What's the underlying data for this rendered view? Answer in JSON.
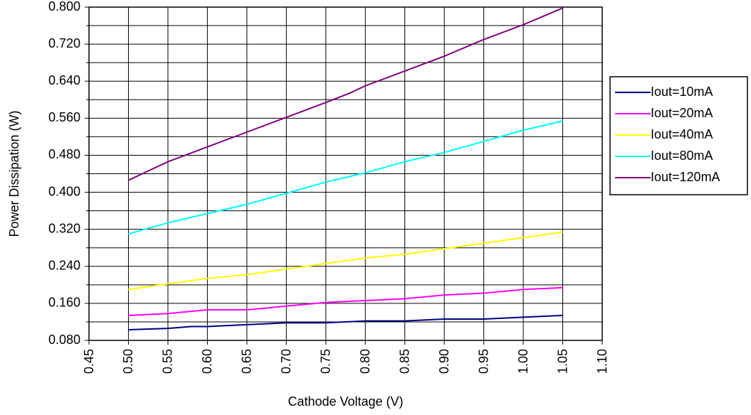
{
  "chart_data": {
    "type": "line",
    "title": "",
    "xlabel": "Cathode Voltage (V)",
    "ylabel": "Power Dissipation (W)",
    "xlim": [
      0.45,
      1.1
    ],
    "ylim": [
      0.08,
      0.8
    ],
    "x_ticks": [
      "0.45",
      "0.50",
      "0.55",
      "0.60",
      "0.65",
      "0.70",
      "0.75",
      "0.80",
      "0.85",
      "0.90",
      "0.95",
      "1.00",
      "1.05",
      "1.10"
    ],
    "y_ticks": [
      "0.080",
      "0.160",
      "0.240",
      "0.320",
      "0.400",
      "0.480",
      "0.560",
      "0.640",
      "0.720",
      "0.800"
    ],
    "grid": true,
    "legend_position": "right",
    "series": [
      {
        "name": "Iout=10mA",
        "color": "#000080",
        "x": [
          0.5,
          0.55,
          0.58,
          0.6,
          0.65,
          0.7,
          0.75,
          0.8,
          0.85,
          0.9,
          0.95,
          1.0,
          1.05
        ],
        "y": [
          0.103,
          0.106,
          0.11,
          0.11,
          0.114,
          0.118,
          0.118,
          0.122,
          0.122,
          0.126,
          0.126,
          0.13,
          0.134
        ]
      },
      {
        "name": "Iout=20mA",
        "color": "#ff00ff",
        "x": [
          0.5,
          0.55,
          0.6,
          0.65,
          0.7,
          0.75,
          0.8,
          0.85,
          0.9,
          0.95,
          1.0,
          1.05
        ],
        "y": [
          0.134,
          0.138,
          0.146,
          0.146,
          0.154,
          0.162,
          0.166,
          0.17,
          0.178,
          0.182,
          0.19,
          0.194
        ]
      },
      {
        "name": "Iout=40mA",
        "color": "#ffff00",
        "x": [
          0.5,
          0.55,
          0.6,
          0.65,
          0.7,
          0.75,
          0.8,
          0.85,
          0.9,
          0.95,
          1.0,
          1.05
        ],
        "y": [
          0.19,
          0.202,
          0.214,
          0.222,
          0.234,
          0.246,
          0.258,
          0.266,
          0.278,
          0.29,
          0.302,
          0.314
        ]
      },
      {
        "name": "Iout=80mA",
        "color": "#00ffff",
        "x": [
          0.5,
          0.55,
          0.58,
          0.6,
          0.65,
          0.7,
          0.75,
          0.78,
          0.8,
          0.85,
          0.9,
          0.95,
          1.0,
          1.05
        ],
        "y": [
          0.31,
          0.334,
          0.346,
          0.354,
          0.374,
          0.398,
          0.422,
          0.434,
          0.442,
          0.466,
          0.486,
          0.51,
          0.534,
          0.554
        ]
      },
      {
        "name": "Iout=120mA",
        "color": "#800080",
        "x": [
          0.5,
          0.55,
          0.6,
          0.65,
          0.7,
          0.75,
          0.78,
          0.8,
          0.85,
          0.9,
          0.95,
          1.0,
          1.05
        ],
        "y": [
          0.426,
          0.466,
          0.498,
          0.53,
          0.562,
          0.594,
          0.614,
          0.63,
          0.662,
          0.694,
          0.73,
          0.762,
          0.798
        ]
      }
    ]
  }
}
